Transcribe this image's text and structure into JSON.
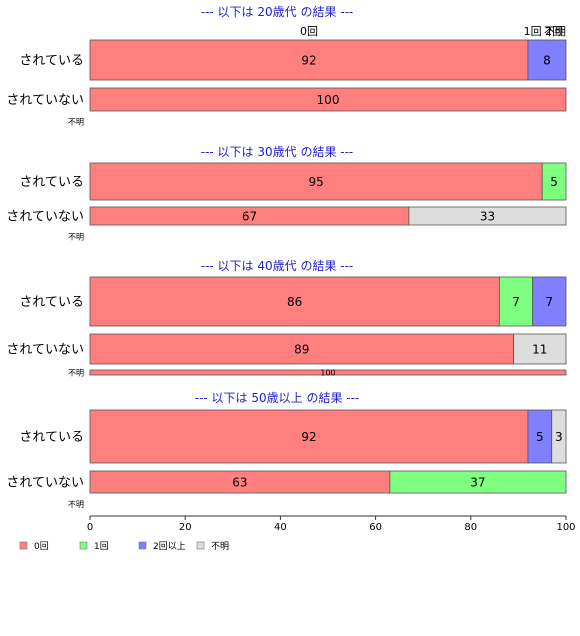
{
  "chart_data": {
    "type": "bar",
    "orientation": "horizontal",
    "stacked": true,
    "xlim": [
      0,
      100
    ],
    "x_ticks": [
      "0",
      "20",
      "40",
      "60",
      "80",
      "100"
    ],
    "colors": {
      "0回": "#FF7F7F",
      "1回": "#7FFF7F",
      "2回以上": "#7F7FFF",
      "不明": "#DDDDDD"
    },
    "legend": {
      "placement": "bottom-left",
      "items": [
        "0回",
        "1回",
        "2回以上",
        "不明"
      ]
    },
    "panels": [
      {
        "title": "--- 以下は 20歳代 の結果 ---",
        "top_labels": [
          "0回",
          "1回",
          "2回",
          "不明"
        ],
        "rows": [
          {
            "label": "されている",
            "segments": [
              {
                "category": "0回",
                "value": 92,
                "label": "92"
              },
              {
                "category": "2回以上",
                "value": 8,
                "label": "8"
              }
            ]
          },
          {
            "label": "されていない",
            "segments": [
              {
                "category": "0回",
                "value": 100,
                "label": "100"
              }
            ]
          },
          {
            "label": "不明",
            "segments": []
          }
        ]
      },
      {
        "title": "--- 以下は 30歳代 の結果 ---",
        "top_labels": [],
        "rows": [
          {
            "label": "されている",
            "segments": [
              {
                "category": "0回",
                "value": 95,
                "label": "95"
              },
              {
                "category": "1回",
                "value": 5,
                "label": "5"
              }
            ]
          },
          {
            "label": "されていない",
            "segments": [
              {
                "category": "0回",
                "value": 67,
                "label": "67"
              },
              {
                "category": "不明",
                "value": 33,
                "label": "33"
              }
            ]
          },
          {
            "label": "不明",
            "segments": []
          }
        ]
      },
      {
        "title": "--- 以下は 40歳代 の結果 ---",
        "top_labels": [],
        "rows": [
          {
            "label": "されている",
            "segments": [
              {
                "category": "0回",
                "value": 86,
                "label": "86"
              },
              {
                "category": "1回",
                "value": 7,
                "label": "7"
              },
              {
                "category": "2回以上",
                "value": 7,
                "label": "7"
              }
            ]
          },
          {
            "label": "されていない",
            "segments": [
              {
                "category": "0回",
                "value": 89,
                "label": "89"
              },
              {
                "category": "不明",
                "value": 11,
                "label": "11"
              }
            ]
          },
          {
            "label": "不明",
            "segments": [
              {
                "category": "0回",
                "value": 100,
                "label": "100"
              }
            ]
          }
        ]
      },
      {
        "title": "--- 以下は 50歳以上 の結果 ---",
        "top_labels": [],
        "rows": [
          {
            "label": "されている",
            "segments": [
              {
                "category": "0回",
                "value": 92,
                "label": "92"
              },
              {
                "category": "2回以上",
                "value": 5,
                "label": "5"
              },
              {
                "category": "不明",
                "value": 3,
                "label": "3"
              }
            ]
          },
          {
            "label": "されていない",
            "segments": [
              {
                "category": "0回",
                "value": 63,
                "label": "63"
              },
              {
                "category": "1回",
                "value": 37,
                "label": "37"
              }
            ]
          },
          {
            "label": "不明",
            "segments": []
          }
        ]
      }
    ]
  }
}
